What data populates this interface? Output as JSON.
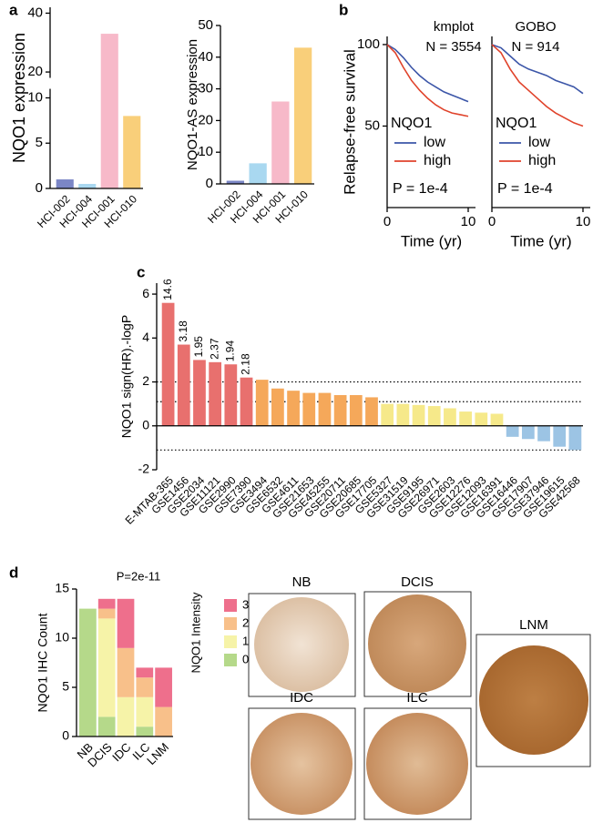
{
  "panels": [
    "a",
    "b",
    "c",
    "d"
  ],
  "images": [
    "NB",
    "DCIS",
    "IDC",
    "ILC",
    "LNM"
  ],
  "chart_data": [
    {
      "type": "bar",
      "ylabel": "NQO1 expression",
      "categories": [
        "HCI-002",
        "HCI-004",
        "HCI-001",
        "HCI-010"
      ],
      "values": [
        1,
        0.5,
        33,
        8
      ],
      "colors": [
        "#7b86c6",
        "#a9d8f0",
        "#f7b9c9",
        "#f9cf7a"
      ],
      "ylim": [
        0,
        42
      ],
      "axis_break": [
        11,
        18
      ],
      "yticks": [
        0,
        5,
        10,
        20,
        40
      ]
    },
    {
      "type": "bar",
      "ylabel": "NQO1-AS expression",
      "categories": [
        "HCI-002",
        "HCI-004",
        "HCI-001",
        "HCI-010"
      ],
      "values": [
        1,
        6.5,
        26,
        43
      ],
      "colors": [
        "#7b86c6",
        "#a9d8f0",
        "#f7b9c9",
        "#f9cf7a"
      ],
      "ylim": [
        0,
        50
      ],
      "yticks": [
        0,
        10,
        20,
        30,
        40,
        50
      ]
    },
    {
      "type": "line",
      "title": "kmplot",
      "subtitle": "N = 3554",
      "ylabel": "Relapse-free survival",
      "xlabel": "Time (yr)",
      "legend_title": "NQO1",
      "annotation": "P = 1e-4",
      "x": [
        0,
        1,
        2,
        3,
        4,
        5,
        6,
        7,
        8,
        9,
        10
      ],
      "xlim": [
        0,
        10
      ],
      "xticks": [
        0,
        10
      ],
      "ylim": [
        0,
        105
      ],
      "yticks": [
        50,
        100
      ],
      "series": [
        {
          "name": "low",
          "color": "#3c56a8",
          "values": [
            100,
            97,
            92,
            86,
            81,
            77,
            74,
            71,
            69,
            67,
            65
          ]
        },
        {
          "name": "high",
          "color": "#e0432b",
          "values": [
            100,
            95,
            86,
            78,
            72,
            67,
            63,
            60,
            58,
            57,
            56
          ]
        }
      ]
    },
    {
      "type": "line",
      "title": "GOBO",
      "subtitle": "N = 914",
      "xlabel": "Time (yr)",
      "legend_title": "NQO1",
      "annotation": "P = 1e-4",
      "x": [
        0,
        1,
        2,
        3,
        4,
        5,
        6,
        7,
        8,
        9,
        10
      ],
      "xlim": [
        0,
        10
      ],
      "xticks": [
        0,
        10
      ],
      "ylim": [
        0,
        105
      ],
      "series": [
        {
          "name": "low",
          "color": "#3c56a8",
          "values": [
            100,
            98,
            93,
            88,
            85,
            83,
            81,
            78,
            76,
            74,
            70
          ]
        },
        {
          "name": "high",
          "color": "#e0432b",
          "values": [
            100,
            95,
            85,
            77,
            72,
            67,
            62,
            58,
            55,
            52,
            50
          ]
        }
      ]
    },
    {
      "type": "bar",
      "ylabel": "NQO1 sign(HR).-logP",
      "categories": [
        "E-MTAB-365",
        "GSE1456",
        "GSE2034",
        "GSE11121",
        "GSE2990",
        "GSE7390",
        "GSE3494",
        "GSE6532",
        "GSE4611",
        "GSE21653",
        "GSE45255",
        "GSE20711",
        "GSE20685",
        "GSE17705",
        "GSE5327",
        "GSE31519",
        "GSE9195",
        "GSE26971",
        "GSE2603",
        "GSE12276",
        "GSE12093",
        "GSE16391",
        "GSE16446",
        "GSE17907",
        "GSE37946",
        "GSE19615",
        "GSE42568"
      ],
      "values": [
        5.6,
        3.7,
        3.0,
        2.9,
        2.8,
        2.2,
        2.1,
        1.7,
        1.6,
        1.5,
        1.5,
        1.4,
        1.4,
        1.3,
        1.0,
        1.0,
        0.95,
        0.9,
        0.8,
        0.65,
        0.6,
        0.55,
        -0.5,
        -0.6,
        -0.7,
        -0.95,
        -1.1
      ],
      "bar_labels": [
        "14.6",
        "3.18",
        "1.95",
        "2.37",
        "1.94",
        "2.18",
        null,
        null,
        null,
        null,
        null,
        null,
        null,
        null,
        null,
        null,
        null,
        null,
        null,
        null,
        null,
        null,
        null,
        null,
        null,
        null,
        null
      ],
      "colors": [
        "#e8706e",
        "#e8706e",
        "#e8706e",
        "#e8706e",
        "#e8706e",
        "#e8706e",
        "#f5a85a",
        "#f5a85a",
        "#f5a85a",
        "#f5a85a",
        "#f5a85a",
        "#f5a85a",
        "#f5a85a",
        "#f5a85a",
        "#f6e98a",
        "#f6e98a",
        "#f6e98a",
        "#f6e98a",
        "#f6e98a",
        "#f6e98a",
        "#f6e98a",
        "#f6e98a",
        "#9cc4e4",
        "#9cc4e4",
        "#9cc4e4",
        "#9cc4e4",
        "#9cc4e4"
      ],
      "reference_lines": [
        2,
        1.1,
        -1.1
      ],
      "ylim": [
        -2,
        6.5
      ],
      "yticks": [
        -2,
        0,
        2,
        4,
        6
      ]
    },
    {
      "type": "stacked_bar",
      "ylabel": "NQO1 IHC Count",
      "annotation": "P=2e-11",
      "legend_title": "NQO1 Intensity",
      "categories": [
        "NB",
        "DCIS",
        "IDC",
        "ILC",
        "LNM"
      ],
      "ylim": [
        0,
        15
      ],
      "yticks": [
        0,
        5,
        10,
        15
      ],
      "series": [
        {
          "name": "0",
          "color": "#b5d98a",
          "values": [
            13,
            2,
            0,
            1,
            0
          ]
        },
        {
          "name": "1",
          "color": "#f6f3a8",
          "values": [
            0,
            10,
            4,
            3,
            0
          ]
        },
        {
          "name": "2",
          "color": "#f8c08a",
          "values": [
            0,
            1,
            5,
            2,
            3
          ]
        },
        {
          "name": "3",
          "color": "#ee6f8c",
          "values": [
            0,
            1,
            5,
            1,
            4
          ]
        }
      ]
    }
  ]
}
